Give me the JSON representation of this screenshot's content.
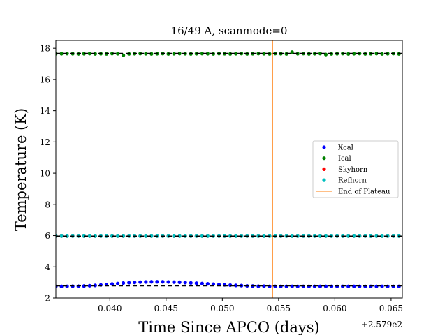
{
  "chart_data": {
    "type": "scatter",
    "title": "16/49 A, scanmode=0",
    "xlabel": "Time Since APCO (days)",
    "ylabel": "Temperature (K)",
    "x_offset_label": "+2.579e2",
    "xlim": [
      0.0352,
      0.066
    ],
    "ylim": [
      2,
      18.5
    ],
    "x_ticks": [
      0.04,
      0.045,
      0.05,
      0.055,
      0.06,
      0.065
    ],
    "x_tick_labels": [
      "0.040",
      "0.045",
      "0.050",
      "0.055",
      "0.060",
      "0.065"
    ],
    "y_ticks": [
      2,
      4,
      6,
      8,
      10,
      12,
      14,
      16,
      18
    ],
    "y_tick_labels": [
      "2",
      "4",
      "6",
      "8",
      "10",
      "12",
      "14",
      "16",
      "18"
    ],
    "x": [
      0.0352,
      0.0357,
      0.0362,
      0.0367,
      0.0372,
      0.0377,
      0.0382,
      0.0387,
      0.0392,
      0.0397,
      0.0402,
      0.0407,
      0.0412,
      0.0417,
      0.0422,
      0.0427,
      0.0432,
      0.0437,
      0.0442,
      0.0447,
      0.0452,
      0.0457,
      0.0462,
      0.0467,
      0.0472,
      0.0477,
      0.0482,
      0.0487,
      0.0492,
      0.0497,
      0.0502,
      0.0507,
      0.0512,
      0.0517,
      0.0522,
      0.0527,
      0.0532,
      0.0537,
      0.0542,
      0.0547,
      0.0552,
      0.0557,
      0.0562,
      0.0567,
      0.0572,
      0.0577,
      0.0582,
      0.0587,
      0.0592,
      0.0597,
      0.0602,
      0.0607,
      0.0612,
      0.0617,
      0.0622,
      0.0627,
      0.0632,
      0.0637,
      0.0642,
      0.0647,
      0.0652,
      0.0657
    ],
    "series": [
      {
        "name": "Xcal",
        "color": "#0000ff",
        "values": [
          2.75,
          2.75,
          2.75,
          2.76,
          2.76,
          2.77,
          2.79,
          2.81,
          2.84,
          2.87,
          2.9,
          2.93,
          2.96,
          2.98,
          3.0,
          3.02,
          3.03,
          3.04,
          3.04,
          3.04,
          3.03,
          3.02,
          3.01,
          2.99,
          2.97,
          2.95,
          2.93,
          2.91,
          2.89,
          2.87,
          2.85,
          2.83,
          2.81,
          2.8,
          2.78,
          2.77,
          2.76,
          2.76,
          2.75,
          2.75,
          2.75,
          2.75,
          2.75,
          2.75,
          2.75,
          2.75,
          2.75,
          2.75,
          2.75,
          2.75,
          2.75,
          2.75,
          2.75,
          2.75,
          2.75,
          2.75,
          2.75,
          2.75,
          2.75,
          2.75,
          2.75,
          2.75
        ]
      },
      {
        "name": "Ical",
        "color": "#008000",
        "values": [
          17.65,
          17.65,
          17.66,
          17.65,
          17.64,
          17.65,
          17.66,
          17.64,
          17.65,
          17.64,
          17.66,
          17.65,
          17.55,
          17.64,
          17.65,
          17.66,
          17.65,
          17.64,
          17.65,
          17.66,
          17.64,
          17.65,
          17.66,
          17.65,
          17.64,
          17.65,
          17.66,
          17.65,
          17.64,
          17.66,
          17.65,
          17.64,
          17.65,
          17.66,
          17.64,
          17.65,
          17.66,
          17.65,
          17.64,
          17.66,
          17.65,
          17.64,
          17.75,
          17.65,
          17.66,
          17.64,
          17.65,
          17.66,
          17.6,
          17.64,
          17.65,
          17.66,
          17.64,
          17.65,
          17.66,
          17.64,
          17.65,
          17.66,
          17.64,
          17.65,
          17.66,
          17.64
        ]
      },
      {
        "name": "Skyhorn",
        "color": "#ff0000",
        "values": [
          5.97,
          5.97,
          5.97,
          5.97,
          5.97,
          5.97,
          5.97,
          5.97,
          5.97,
          5.97,
          5.97,
          5.97,
          5.97,
          5.97,
          5.97,
          5.97,
          5.97,
          5.97,
          5.97,
          5.97,
          5.97,
          5.97,
          5.97,
          5.97,
          5.97,
          5.97,
          5.97,
          5.97,
          5.97,
          5.97,
          5.97,
          5.97,
          5.97,
          5.97,
          5.97,
          5.97,
          5.97,
          5.97,
          5.97,
          5.97,
          5.97,
          5.97,
          5.97,
          5.97,
          5.97,
          5.97,
          5.97,
          5.97,
          5.97,
          5.97,
          5.97,
          5.97,
          5.97,
          5.97,
          5.97,
          5.97,
          5.97,
          5.97,
          5.97,
          5.97,
          5.97,
          5.97
        ]
      },
      {
        "name": "Refhorn",
        "color": "#00bfbf",
        "values": [
          5.97,
          5.97,
          5.97,
          5.97,
          5.97,
          5.97,
          5.97,
          5.97,
          5.97,
          5.97,
          5.97,
          5.97,
          5.97,
          5.97,
          5.97,
          5.97,
          5.97,
          5.97,
          5.97,
          5.97,
          5.97,
          5.97,
          5.97,
          5.97,
          5.97,
          5.97,
          5.97,
          5.97,
          5.97,
          5.97,
          5.97,
          5.97,
          5.97,
          5.97,
          5.97,
          5.97,
          5.97,
          5.97,
          5.97,
          5.97,
          5.97,
          5.97,
          5.97,
          5.97,
          5.97,
          5.97,
          5.97,
          5.97,
          5.97,
          5.97,
          5.97,
          5.97,
          5.97,
          5.97,
          5.97,
          5.97,
          5.97,
          5.97,
          5.97,
          5.97,
          5.97,
          5.97
        ]
      }
    ],
    "reference_lines": [
      {
        "y": 2.78,
        "x_range": [
          0.0352,
          0.066
        ],
        "style": "dashed",
        "color": "#000000"
      },
      {
        "y": 17.67,
        "x_range": [
          0.0352,
          0.066
        ],
        "style": "dashed",
        "color": "#000000"
      },
      {
        "y": 5.97,
        "x_range": [
          0.0352,
          0.066
        ],
        "style": "dashed",
        "color": "#000000"
      }
    ],
    "vertical_lines": [
      {
        "name": "End of Plateau",
        "x": 0.05445,
        "color": "#ff7f0e"
      }
    ],
    "legend": {
      "placement": "center-right",
      "entries": [
        {
          "label": "Xcal",
          "marker": "dot",
          "color": "#0000ff"
        },
        {
          "label": "Ical",
          "marker": "dot",
          "color": "#008000"
        },
        {
          "label": "Skyhorn",
          "marker": "dot",
          "color": "#ff0000"
        },
        {
          "label": "Refhorn",
          "marker": "dot",
          "color": "#00bfbf"
        },
        {
          "label": "End of Plateau",
          "marker": "line",
          "color": "#ff7f0e"
        }
      ]
    },
    "grid": false
  }
}
